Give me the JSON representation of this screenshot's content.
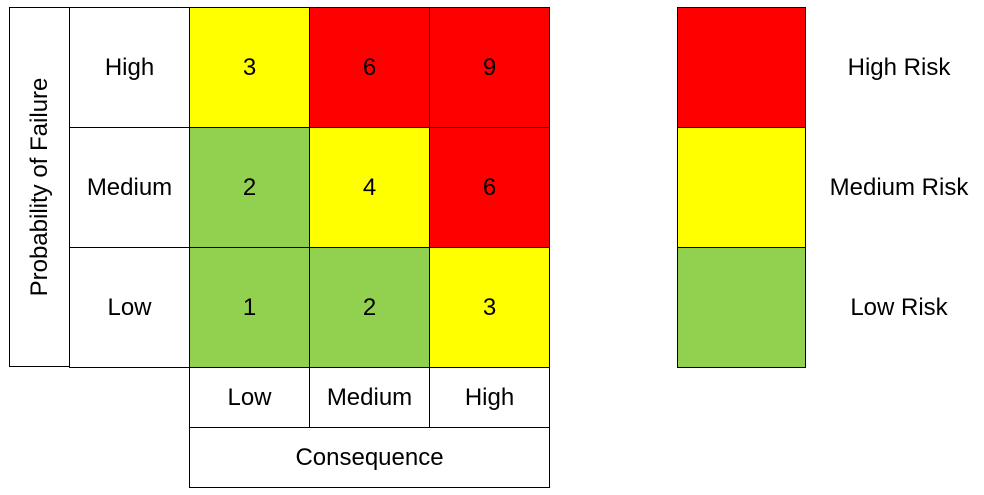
{
  "y_axis": {
    "title": "Probability of Failure",
    "rows": [
      "High",
      "Medium",
      "Low"
    ]
  },
  "x_axis": {
    "title": "Consequence",
    "columns": [
      "Low",
      "Medium",
      "High"
    ]
  },
  "matrix": [
    [
      {
        "value": "3",
        "level": "medium"
      },
      {
        "value": "6",
        "level": "high"
      },
      {
        "value": "9",
        "level": "high"
      }
    ],
    [
      {
        "value": "2",
        "level": "low"
      },
      {
        "value": "4",
        "level": "medium"
      },
      {
        "value": "6",
        "level": "high"
      }
    ],
    [
      {
        "value": "1",
        "level": "low"
      },
      {
        "value": "2",
        "level": "low"
      },
      {
        "value": "3",
        "level": "medium"
      }
    ]
  ],
  "legend": [
    {
      "level": "high",
      "label": "High Risk"
    },
    {
      "level": "medium",
      "label": "Medium Risk"
    },
    {
      "level": "low",
      "label": "Low Risk"
    }
  ],
  "colors": {
    "high": "#ff0000",
    "medium": "#ffff00",
    "low": "#92d050"
  }
}
